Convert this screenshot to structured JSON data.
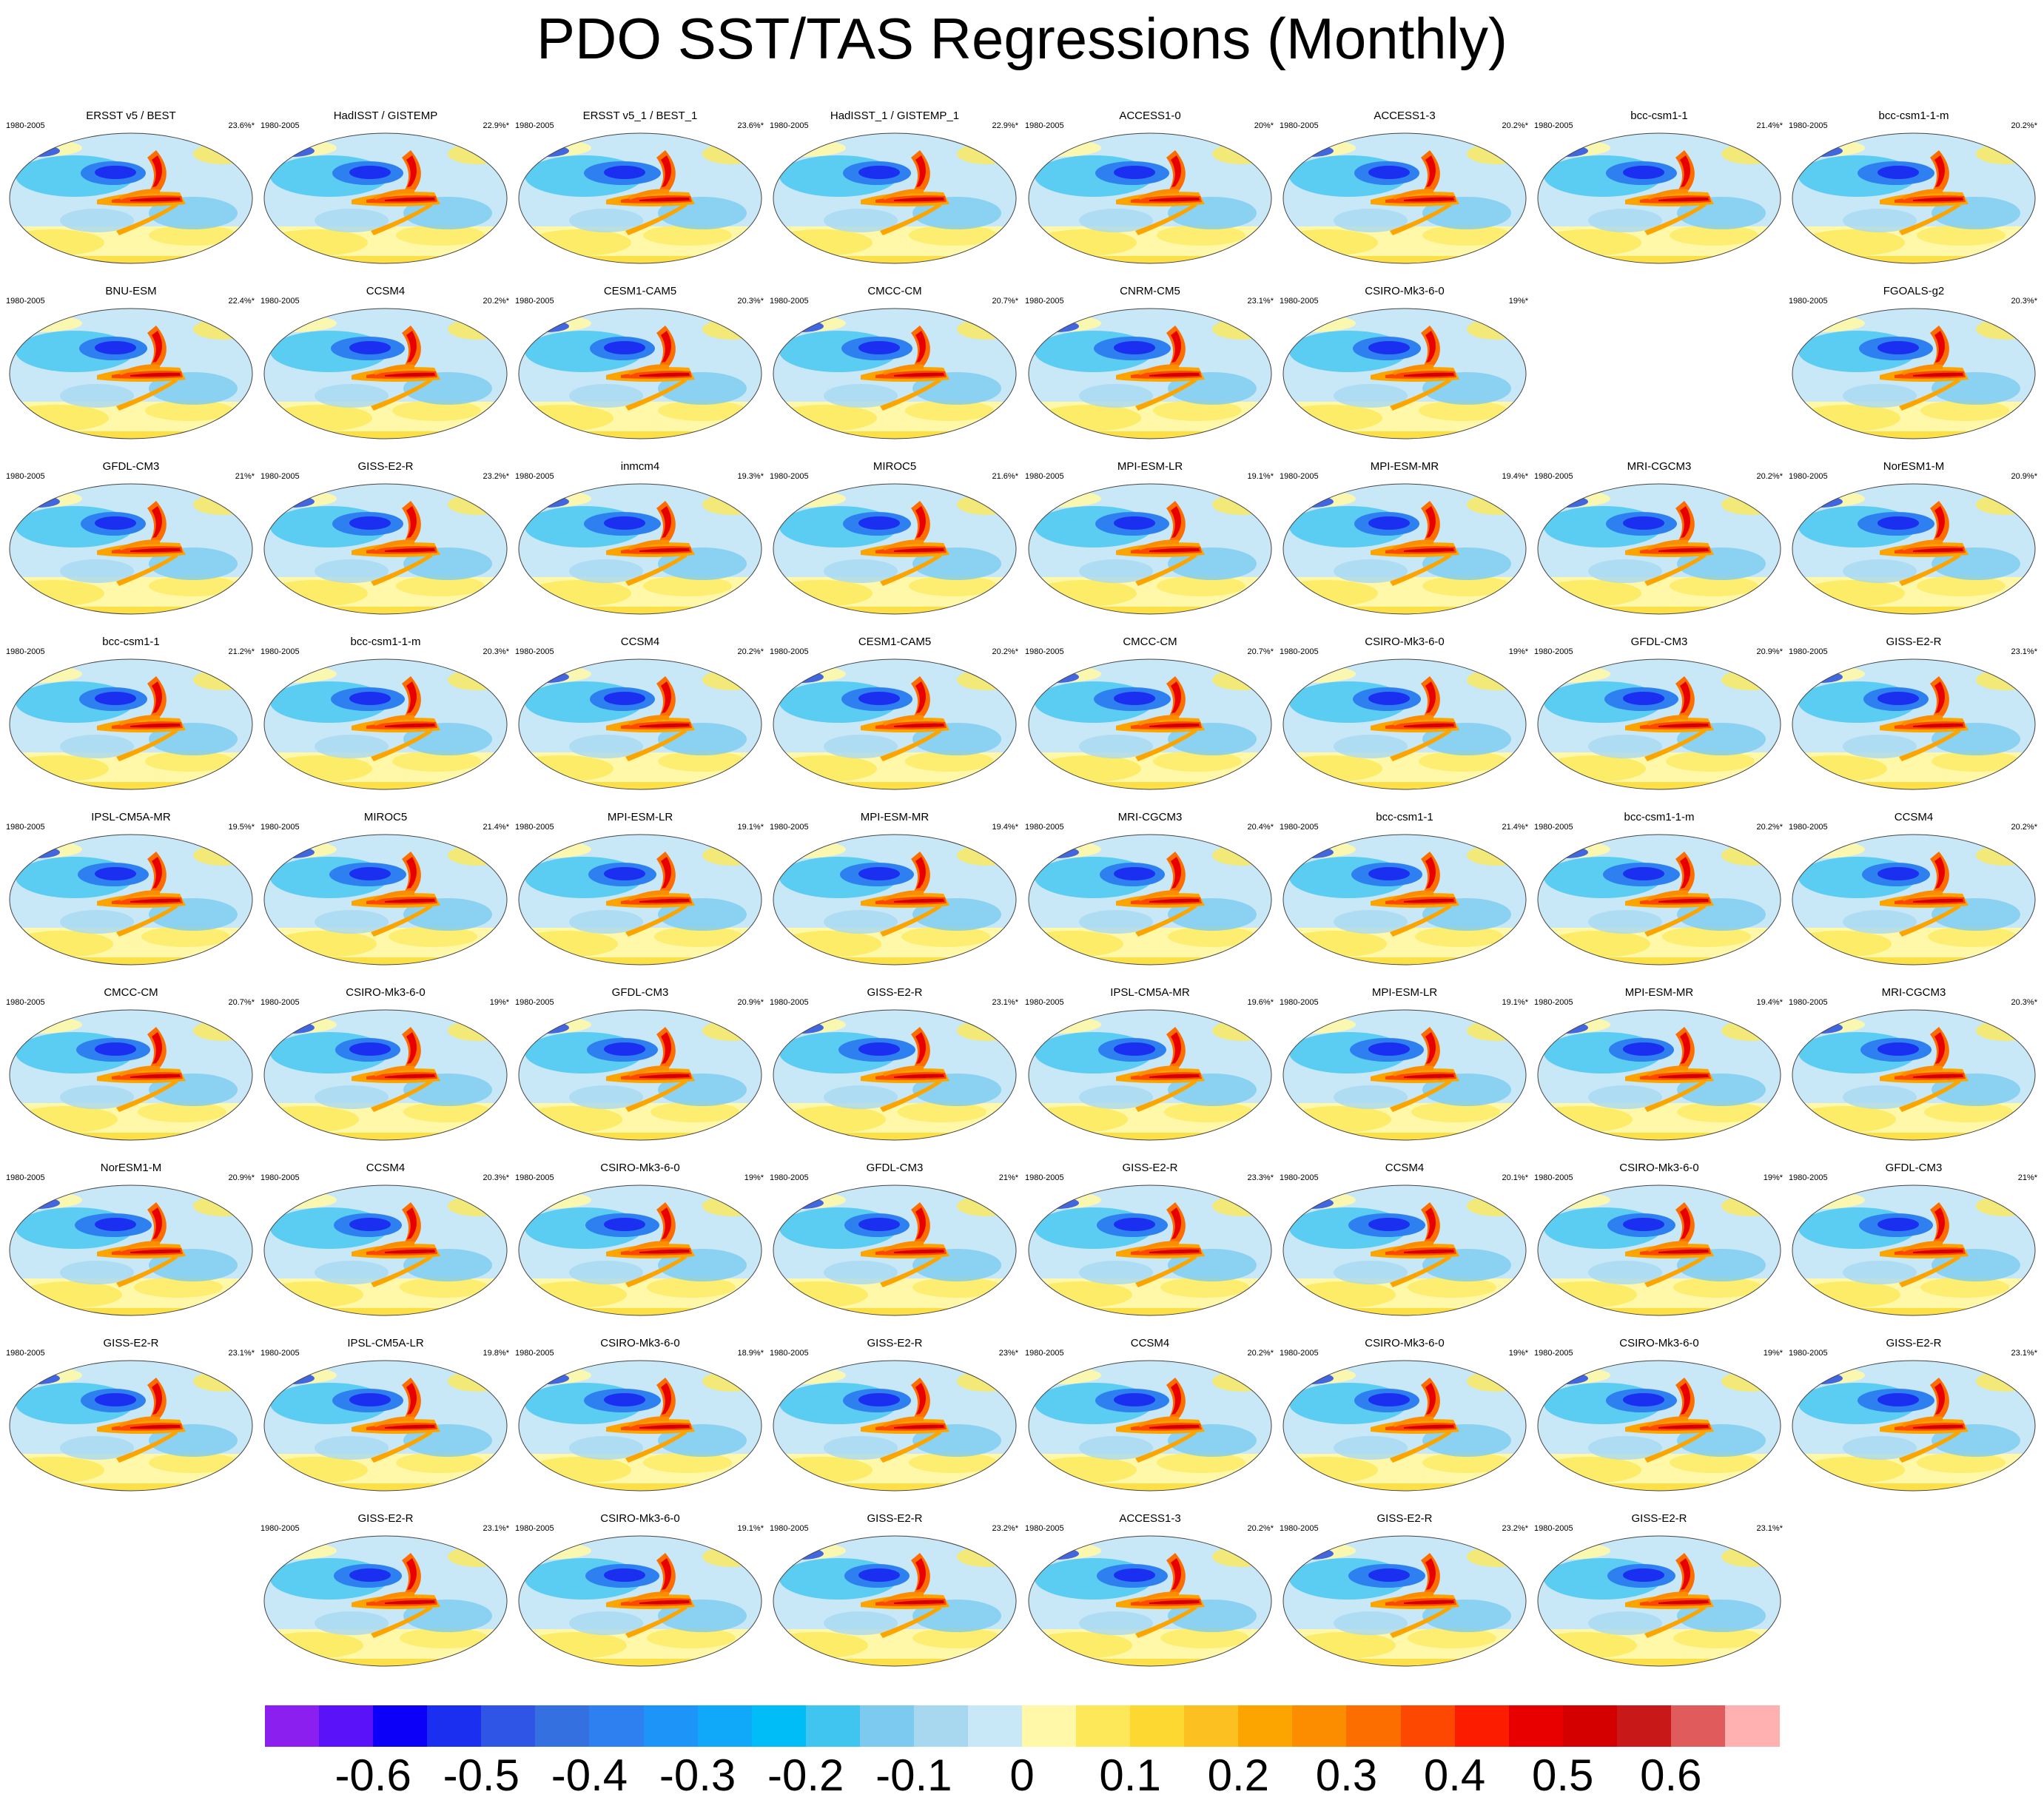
{
  "title": "PDO SST/TAS Regressions (Monthly)",
  "period": "1980-2005",
  "panels": [
    {
      "name": "ERSST v5 / BEST",
      "pct": "23.6%*"
    },
    {
      "name": "HadISST / GISTEMP",
      "pct": "22.9%*"
    },
    {
      "name": "ERSST v5_1 / BEST_1",
      "pct": "23.6%*"
    },
    {
      "name": "HadISST_1 / GISTEMP_1",
      "pct": "22.9%*"
    },
    {
      "name": "ACCESS1-0",
      "pct": "20%*"
    },
    {
      "name": "ACCESS1-3",
      "pct": "20.2%*"
    },
    {
      "name": "bcc-csm1-1",
      "pct": "21.4%*"
    },
    {
      "name": "bcc-csm1-1-m",
      "pct": "20.2%*"
    },
    {
      "name": "BNU-ESM",
      "pct": "22.4%*"
    },
    {
      "name": "CCSM4",
      "pct": "20.2%*"
    },
    {
      "name": "CESM1-CAM5",
      "pct": "20.3%*"
    },
    {
      "name": "CMCC-CM",
      "pct": "20.7%*"
    },
    {
      "name": "CNRM-CM5",
      "pct": "23.1%*"
    },
    {
      "name": "CSIRO-Mk3-6-0",
      "pct": "19%*"
    },
    {
      "name": "FGOALS-g2",
      "pct": "20.3%*"
    },
    {
      "name": "GFDL-CM3",
      "pct": "21%*"
    },
    {
      "name": "GISS-E2-R",
      "pct": "23.2%*"
    },
    {
      "name": "inmcm4",
      "pct": "19.3%*"
    },
    {
      "name": "MIROC5",
      "pct": "21.6%*"
    },
    {
      "name": "MPI-ESM-LR",
      "pct": "19.1%*"
    },
    {
      "name": "MPI-ESM-MR",
      "pct": "19.4%*"
    },
    {
      "name": "MRI-CGCM3",
      "pct": "20.2%*"
    },
    {
      "name": "NorESM1-M",
      "pct": "20.9%*"
    },
    {
      "name": "bcc-csm1-1",
      "pct": "21.2%*"
    },
    {
      "name": "bcc-csm1-1-m",
      "pct": "20.3%*"
    },
    {
      "name": "CCSM4",
      "pct": "20.2%*"
    },
    {
      "name": "CESM1-CAM5",
      "pct": "20.2%*"
    },
    {
      "name": "CMCC-CM",
      "pct": "20.7%*"
    },
    {
      "name": "CSIRO-Mk3-6-0",
      "pct": "19%*"
    },
    {
      "name": "GFDL-CM3",
      "pct": "20.9%*"
    },
    {
      "name": "GISS-E2-R",
      "pct": "23.1%*"
    },
    {
      "name": "IPSL-CM5A-MR",
      "pct": "19.5%*"
    },
    {
      "name": "MIROC5",
      "pct": "21.4%*"
    },
    {
      "name": "MPI-ESM-LR",
      "pct": "19.1%*"
    },
    {
      "name": "MPI-ESM-MR",
      "pct": "19.4%*"
    },
    {
      "name": "MRI-CGCM3",
      "pct": "20.4%*"
    },
    {
      "name": "bcc-csm1-1",
      "pct": "21.4%*"
    },
    {
      "name": "bcc-csm1-1-m",
      "pct": "20.2%*"
    },
    {
      "name": "CCSM4",
      "pct": "20.2%*"
    },
    {
      "name": "CMCC-CM",
      "pct": "20.7%*"
    },
    {
      "name": "CSIRO-Mk3-6-0",
      "pct": "19%*"
    },
    {
      "name": "GFDL-CM3",
      "pct": "20.9%*"
    },
    {
      "name": "GISS-E2-R",
      "pct": "23.1%*"
    },
    {
      "name": "IPSL-CM5A-MR",
      "pct": "19.6%*"
    },
    {
      "name": "MPI-ESM-LR",
      "pct": "19.1%*"
    },
    {
      "name": "MPI-ESM-MR",
      "pct": "19.4%*"
    },
    {
      "name": "MRI-CGCM3",
      "pct": "20.3%*"
    },
    {
      "name": "NorESM1-M",
      "pct": "20.9%*"
    },
    {
      "name": "CCSM4",
      "pct": "20.3%*"
    },
    {
      "name": "CSIRO-Mk3-6-0",
      "pct": "19%*"
    },
    {
      "name": "GFDL-CM3",
      "pct": "21%*"
    },
    {
      "name": "GISS-E2-R",
      "pct": "23.3%*"
    },
    {
      "name": "CCSM4",
      "pct": "20.1%*"
    },
    {
      "name": "CSIRO-Mk3-6-0",
      "pct": "19%*"
    },
    {
      "name": "GFDL-CM3",
      "pct": "21%*"
    },
    {
      "name": "GISS-E2-R",
      "pct": "23.1%*"
    },
    {
      "name": "IPSL-CM5A-LR",
      "pct": "19.8%*"
    },
    {
      "name": "CSIRO-Mk3-6-0",
      "pct": "18.9%*"
    },
    {
      "name": "GISS-E2-R",
      "pct": "23%*"
    },
    {
      "name": "CCSM4",
      "pct": "20.2%*"
    },
    {
      "name": "CSIRO-Mk3-6-0",
      "pct": "19%*"
    },
    {
      "name": "CSIRO-Mk3-6-0",
      "pct": "19%*"
    },
    {
      "name": "GISS-E2-R",
      "pct": "23.1%*"
    },
    {
      "name": "GISS-E2-R",
      "pct": "23.1%*"
    },
    {
      "name": "CSIRO-Mk3-6-0",
      "pct": "19.1%*"
    },
    {
      "name": "GISS-E2-R",
      "pct": "23.2%*"
    },
    {
      "name": "ACCESS1-3",
      "pct": "20.2%*"
    },
    {
      "name": "GISS-E2-R",
      "pct": "23.2%*"
    },
    {
      "name": "GISS-E2-R",
      "pct": "23.1%*"
    }
  ],
  "colorbar": {
    "colors": [
      "#8b1ff0",
      "#5a12f8",
      "#0d00f8",
      "#1a2ff0",
      "#2e55e6",
      "#3470e0",
      "#2e7ff0",
      "#1c94f8",
      "#10a8f8",
      "#00bdf8",
      "#40c4f0",
      "#7ccaf0",
      "#a8d8f0",
      "#c8e8f8",
      "#fff8a8",
      "#fce858",
      "#fcd830",
      "#fcc020",
      "#fca400",
      "#fc8c00",
      "#fc6e00",
      "#fc4800",
      "#fc1c00",
      "#e80000",
      "#d40000",
      "#c81818",
      "#e05c5c",
      "#ffb0b0"
    ],
    "labels": [
      "-0.6",
      "-0.5",
      "-0.4",
      "-0.3",
      "-0.2",
      "-0.1",
      "0",
      "0.1",
      "0.2",
      "0.3",
      "0.4",
      "0.5",
      "0.6"
    ]
  }
}
